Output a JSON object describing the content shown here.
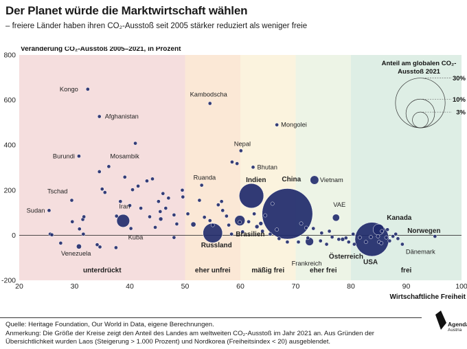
{
  "header": {
    "title": "Der Planet würde die Marktwirtschaft wählen",
    "subtitle": "– freiere Länder haben ihren CO₂-Ausstoß seit 2005 stärker reduziert als weniger freie"
  },
  "footer": {
    "source": "Quelle: Heritage Foundation, Our World in Data, eigene Berechnungen.",
    "note": "Anmerkung: Die Größe der Kreise zeigt den Anteil des Landes am weltweiten CO₂-Ausstoß im Jahr 2021 an. Aus Gründen der Übersichtlichkeit wurden Laos (Steigerung > 1.000 Prozent) und Nordkorea (Freiheitsindex < 20) ausgeblendet."
  },
  "logo": {
    "line1": "Agenda",
    "line2": "Austria"
  },
  "colors": {
    "dot": "#1f2a6b",
    "dot_edge": "#ffffff",
    "zone_unterdrueckt": "#f5dede",
    "zone_eher_unfrei": "#fbe8d6",
    "zone_maessig_frei": "#fbf3de",
    "zone_eher_frei": "#edf4e6",
    "zone_frei": "#deeee5"
  },
  "chart_data": {
    "type": "scatter",
    "ylabel": "Veränderung CO₂-Ausstoß 2005–2021, in Prozent",
    "xlabel": "Wirtschaftliche Freiheit",
    "xlim": [
      20,
      100
    ],
    "ylim": [
      -200,
      800
    ],
    "xticks": [
      20,
      30,
      40,
      50,
      60,
      70,
      80,
      90,
      100
    ],
    "yticks": [
      -200,
      0,
      200,
      400,
      600,
      800
    ],
    "zero_line": true,
    "zones": [
      {
        "label": "unterdrückt",
        "from": 20,
        "to": 50,
        "color": "#f5dede"
      },
      {
        "label": "eher unfrei",
        "from": 50,
        "to": 60,
        "color": "#fbe8d6"
      },
      {
        "label": "mäßig frei",
        "from": 60,
        "to": 70,
        "color": "#fbf3de"
      },
      {
        "label": "eher frei",
        "from": 70,
        "to": 80,
        "color": "#edf4e6"
      },
      {
        "label": "frei",
        "from": 80,
        "to": 100,
        "color": "#deeee5"
      }
    ],
    "legend": {
      "title_line1": "Anteil am globalen CO₂-",
      "title_line2": "Ausstoß 2021",
      "position": "top-right",
      "sizes": [
        {
          "share": 30,
          "label": "30%"
        },
        {
          "share": 10,
          "label": "10%"
        },
        {
          "share": 3,
          "label": "3%"
        }
      ]
    },
    "labeled_points": [
      {
        "name": "Kongo",
        "x": 32.4,
        "y": 648,
        "share": 0.02
      },
      {
        "name": "Afghanistan",
        "x": 34.5,
        "y": 527,
        "share": 0.03
      },
      {
        "name": "Burundi",
        "x": 30.8,
        "y": 351,
        "share": 0.01
      },
      {
        "name": "Mosambik",
        "x": 36.2,
        "y": 305,
        "share": 0.03
      },
      {
        "name": "Tschad",
        "x": 29.5,
        "y": 155,
        "share": 0.01
      },
      {
        "name": "Sudan",
        "x": 25.4,
        "y": 110,
        "share": 0.05
      },
      {
        "name": "Iran",
        "x": 38.8,
        "y": 64,
        "share": 2.0
      },
      {
        "name": "Kuba",
        "x": 40.2,
        "y": 30,
        "share": 0.07
      },
      {
        "name": "Venezuela",
        "x": 30.8,
        "y": -50,
        "share": 0.3
      },
      {
        "name": "Kambodscha",
        "x": 54.5,
        "y": 585,
        "share": 0.05
      },
      {
        "name": "Ruanda",
        "x": 53.0,
        "y": 222,
        "share": 0.01
      },
      {
        "name": "Russland",
        "x": 55.0,
        "y": 10,
        "share": 4.6
      },
      {
        "name": "Nepal",
        "x": 60.1,
        "y": 375,
        "share": 0.03
      },
      {
        "name": "Bhutan",
        "x": 62.3,
        "y": 302,
        "share": 0.005
      },
      {
        "name": "Mongolei",
        "x": 66.6,
        "y": 490,
        "share": 0.1
      },
      {
        "name": "Brasilien",
        "x": 59.9,
        "y": 65,
        "share": 1.3
      },
      {
        "name": "Indien",
        "x": 62.0,
        "y": 175,
        "share": 7.3
      },
      {
        "name": "China",
        "x": 68.5,
        "y": 95,
        "share": 31.0
      },
      {
        "name": "Vietnam",
        "x": 73.4,
        "y": 245,
        "share": 0.9
      },
      {
        "name": "VAE",
        "x": 77.3,
        "y": 78,
        "share": 0.6
      },
      {
        "name": "Frankreich",
        "x": 72.5,
        "y": -28,
        "share": 0.8
      },
      {
        "name": "Österreich",
        "x": 78.5,
        "y": -18,
        "share": 0.2
      },
      {
        "name": "USA",
        "x": 83.8,
        "y": -18,
        "share": 14.0
      },
      {
        "name": "Kanada",
        "x": 85.0,
        "y": 25,
        "share": 1.5
      },
      {
        "name": "Norwegen",
        "x": 95.2,
        "y": -5,
        "share": 0.1
      },
      {
        "name": "Dänemark",
        "x": 89.3,
        "y": -40,
        "share": 0.06
      }
    ],
    "unlabeled_points": [
      [
        25.6,
        5,
        0.01
      ],
      [
        25.9,
        2,
        0.01
      ],
      [
        27.5,
        -35,
        0.01
      ],
      [
        29.6,
        60,
        0.01
      ],
      [
        30.9,
        28,
        0.05
      ],
      [
        31.6,
        5,
        0.01
      ],
      [
        31.5,
        70,
        0.01
      ],
      [
        31.7,
        82,
        0.01
      ],
      [
        34.6,
        -52,
        0.02
      ],
      [
        34.1,
        -42,
        0.01
      ],
      [
        34.5,
        282,
        0.03
      ],
      [
        35.0,
        205,
        0.01
      ],
      [
        35.5,
        190,
        0.01
      ],
      [
        37.6,
        85,
        0.1
      ],
      [
        37.5,
        -55,
        0.01
      ],
      [
        38.3,
        150,
        0.01
      ],
      [
        39.1,
        258,
        0.02
      ],
      [
        40.0,
        132,
        0.02
      ],
      [
        40.5,
        202,
        0.02
      ],
      [
        41.0,
        408,
        0.01
      ],
      [
        41.5,
        218,
        0.01
      ],
      [
        42.0,
        120,
        0.01
      ],
      [
        43.1,
        241,
        0.01
      ],
      [
        43.6,
        82,
        0.02
      ],
      [
        44.1,
        250,
        0.01
      ],
      [
        44.6,
        35,
        0.1
      ],
      [
        45.2,
        150,
        0.01
      ],
      [
        45.6,
        72,
        0.2
      ],
      [
        45.5,
        105,
        0.02
      ],
      [
        46.0,
        185,
        0.02
      ],
      [
        46.5,
        120,
        0.01
      ],
      [
        47.0,
        165,
        0.02
      ],
      [
        48.0,
        90,
        0.01
      ],
      [
        48.5,
        50,
        0.02
      ],
      [
        48.0,
        -10,
        0.01
      ],
      [
        49.5,
        200,
        0.01
      ],
      [
        49.6,
        170,
        0.01
      ],
      [
        50.5,
        95,
        0.01
      ],
      [
        51.5,
        48,
        0.3
      ],
      [
        52.6,
        155,
        0.01
      ],
      [
        53.5,
        80,
        0.01
      ],
      [
        54.5,
        65,
        0.05
      ],
      [
        55.0,
        45,
        0.03
      ],
      [
        56.0,
        135,
        0.01
      ],
      [
        56.6,
        150,
        0.1
      ],
      [
        56.8,
        110,
        0.02
      ],
      [
        57.5,
        85,
        0.02
      ],
      [
        57.9,
        45,
        0.02
      ],
      [
        58.5,
        325,
        0.01
      ],
      [
        59.4,
        318,
        0.01
      ],
      [
        58.4,
        5,
        0.01
      ],
      [
        59.9,
        58,
        0.02
      ],
      [
        60.4,
        15,
        0.02
      ],
      [
        61.5,
        60,
        0.02
      ],
      [
        62.5,
        95,
        0.02
      ],
      [
        63.0,
        38,
        0.2
      ],
      [
        63.7,
        52,
        0.2
      ],
      [
        64.0,
        18,
        0.15
      ],
      [
        64.5,
        88,
        0.1
      ],
      [
        65.4,
        5,
        0.1
      ],
      [
        65.8,
        140,
        0.02
      ],
      [
        66.6,
        25,
        0.1
      ],
      [
        67.0,
        -15,
        0.01
      ],
      [
        68.5,
        -30,
        0.05
      ],
      [
        70.5,
        -30,
        0.01
      ],
      [
        71.0,
        52,
        0.02
      ],
      [
        71.9,
        33,
        0.1
      ],
      [
        72.2,
        -12,
        0.03
      ],
      [
        73.2,
        30,
        0.05
      ],
      [
        74.5,
        -25,
        0.1
      ],
      [
        74.7,
        10,
        0.03
      ],
      [
        75.6,
        -40,
        0.1
      ],
      [
        76.1,
        18,
        0.05
      ],
      [
        76.6,
        -8,
        0.02
      ],
      [
        77.8,
        -18,
        0.03
      ],
      [
        79.1,
        -12,
        0.05
      ],
      [
        79.6,
        -30,
        0.1
      ],
      [
        80.4,
        5,
        0.02
      ],
      [
        80.6,
        -40,
        0.05
      ],
      [
        81.6,
        -10,
        0.05
      ],
      [
        82.7,
        -30,
        0.03
      ],
      [
        83.6,
        -8,
        0.05
      ],
      [
        84.9,
        -5,
        0.1
      ],
      [
        85.1,
        -30,
        0.1
      ],
      [
        85.5,
        -35,
        0.1
      ],
      [
        85.6,
        18,
        0.05
      ],
      [
        86.4,
        -10,
        0.1
      ],
      [
        87.0,
        -25,
        0.02
      ],
      [
        87.6,
        -5,
        0.05
      ],
      [
        88.1,
        5,
        0.1
      ],
      [
        88.5,
        -15,
        0.05
      ],
      [
        86.6,
        25,
        0.05
      ]
    ]
  }
}
